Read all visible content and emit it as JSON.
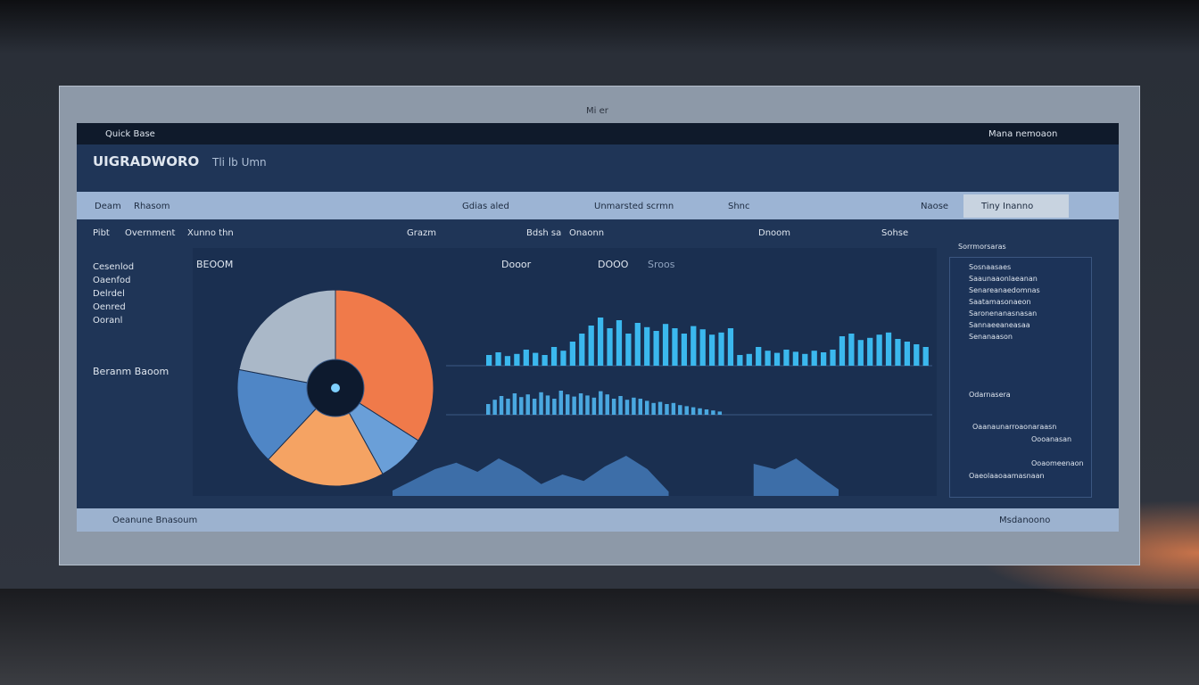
{
  "window_title": "Mi er",
  "header": {
    "brand": "Quick Base",
    "user": "Mana nemoaon"
  },
  "title_bar": {
    "title": "UIGRADWORO",
    "subtitle": "Tli lb Umn"
  },
  "toolbar": {
    "left": [
      "Deam",
      "Rhasom"
    ],
    "center": [
      "Gdias aled",
      "Unmarsted scrmn",
      "Shnc"
    ],
    "right": [
      "Naose",
      "Tiny Inanno"
    ]
  },
  "tabs": [
    "Pibt",
    "Overnment",
    "Xunno thn",
    "Grazm",
    "Bdsh sa",
    "Onaonn",
    "Dnoom",
    "Sohse"
  ],
  "sidebar": {
    "items": [
      "Cesenlod",
      "Oaenfod",
      "Delrdel",
      "Oenred",
      "Ooranl"
    ],
    "footer": "Beranm Baoom"
  },
  "panel": {
    "title": "BEOOM",
    "legend": [
      "Dooor",
      "DOOO",
      "Sroos"
    ],
    "pie": {
      "values": [
        34,
        8,
        20,
        16,
        22
      ],
      "colors": [
        "#f07a4a",
        "#6a9fd8",
        "#f5a363",
        "#4f86c6",
        "#aab8c8"
      ]
    },
    "bars": [
      {
        "color": "#3bb8ee",
        "values": [
          20,
          25,
          18,
          22,
          30,
          24,
          20,
          35,
          28,
          45,
          60,
          75,
          90,
          70,
          85,
          60,
          80,
          72,
          65,
          78,
          70,
          60,
          74,
          68,
          58,
          62,
          70,
          20,
          22,
          35,
          28,
          24,
          30,
          26,
          22,
          28,
          25,
          30,
          55,
          60,
          48,
          52,
          58,
          62,
          50,
          45,
          40,
          35
        ]
      },
      {
        "color": "#4aa8e0",
        "values": [
          20,
          28,
          35,
          30,
          40,
          33,
          38,
          30,
          42,
          36,
          30,
          45,
          38,
          34,
          40,
          36,
          32,
          44,
          38,
          30,
          35,
          28,
          32,
          30,
          26,
          22,
          24,
          20,
          22,
          18,
          16,
          14,
          12,
          10,
          8,
          6
        ]
      }
    ],
    "area": {
      "color": "#3d6ea8",
      "values": [
        10,
        30,
        50,
        62,
        45,
        70,
        50,
        22,
        40,
        28,
        55,
        75,
        50,
        8,
        null,
        null,
        null,
        60,
        50,
        70,
        40,
        12
      ]
    }
  },
  "right_panel": {
    "title": "Sorrmorsaras",
    "items": [
      "Sosnaasaes",
      "Saaunaaonlaeanan",
      "Senareanaedomnas",
      "Saatamasonaeon",
      "Saronenanasnasan",
      "Sannaeeaneasaa",
      "Senanaason"
    ],
    "sub_title": "Odarnasera",
    "sub_items": [
      "Oaanaunarroaonaraasn",
      "Oooanasan",
      "Ooaomeenaon",
      "Oaeolaaoaamasnaan"
    ]
  },
  "footer": {
    "left": "Oeanune Bnasoum",
    "right": "Msdanoono"
  }
}
